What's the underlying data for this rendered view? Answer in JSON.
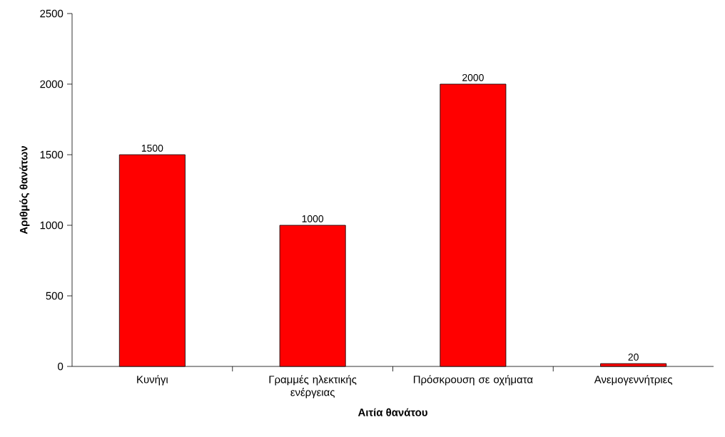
{
  "chart_data": {
    "type": "bar",
    "xlabel": "Αιτία θανάτου",
    "ylabel": "Αριθμός θανάτων",
    "categories": [
      "Κυνήγι",
      "Γραμμές ηλεκτικής ενέργειας",
      "Πρόσκρουση σε οχήματα",
      "Ανεμογεννήτριες"
    ],
    "values": [
      1500,
      1000,
      2000,
      20
    ],
    "color": "#ff0000",
    "ylim": [
      0,
      2500
    ],
    "yticks": [
      0,
      500,
      1000,
      1500,
      2000,
      2500
    ],
    "data_labels": true,
    "grid": false
  }
}
